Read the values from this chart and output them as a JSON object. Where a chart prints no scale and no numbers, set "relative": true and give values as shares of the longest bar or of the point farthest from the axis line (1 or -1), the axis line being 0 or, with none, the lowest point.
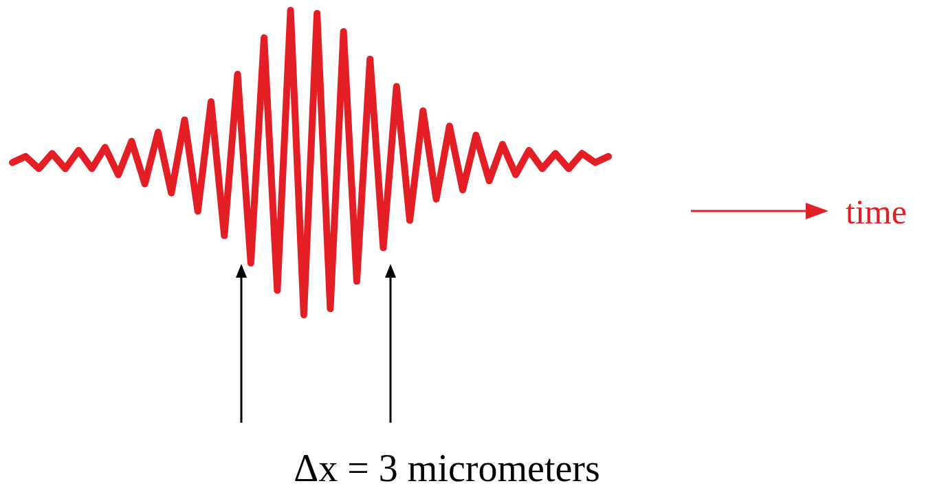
{
  "chart_data": {
    "type": "line",
    "relative": true,
    "annotations": [
      "Δx = 3 micrometers",
      "time"
    ],
    "categories": [
      null,
      null,
      null,
      null,
      null,
      null,
      null,
      null,
      null,
      null,
      null,
      null,
      null,
      null,
      null,
      null,
      null,
      null,
      null,
      null,
      null,
      null,
      null,
      null,
      null,
      null,
      null,
      null,
      null,
      null,
      null,
      null,
      null,
      null,
      null,
      null,
      null,
      null,
      null,
      null,
      null,
      null,
      null,
      null,
      null,
      null
    ],
    "series": [
      {
        "color": "#e31e24",
        "values": [
          0.5,
          0.52,
          0.48,
          0.53,
          0.48,
          0.54,
          0.48,
          0.55,
          0.46,
          0.57,
          0.43,
          0.6,
          0.4,
          0.64,
          0.34,
          0.7,
          0.26,
          0.79,
          0.17,
          0.91,
          0.08,
          1,
          0,
          0.99,
          0.02,
          0.93,
          0.11,
          0.84,
          0.22,
          0.75,
          0.31,
          0.67,
          0.38,
          0.62,
          0.41,
          0.59,
          0.44,
          0.56,
          0.46,
          0.54,
          0.48,
          0.53,
          0.48,
          0.53,
          0.5,
          0.52
        ]
      }
    ]
  }
}
